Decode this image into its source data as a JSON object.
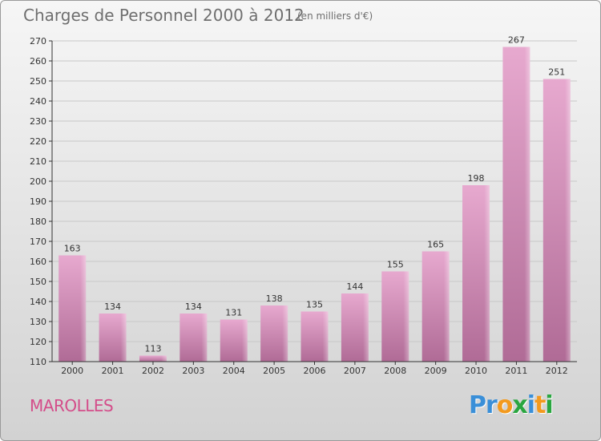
{
  "header": {
    "title": "Charges de Personnel 2000 à 2012",
    "unit": "(en milliers d'€)"
  },
  "footer": {
    "commune": "MAROLLES",
    "logo_letters": [
      {
        "char": "P",
        "color": "#3a8fd8"
      },
      {
        "char": "r",
        "color": "#3a8fd8"
      },
      {
        "char": "o",
        "color": "#f39a1e"
      },
      {
        "char": "x",
        "color": "#2aa640"
      },
      {
        "char": "i",
        "color": "#3a8fd8"
      },
      {
        "char": "t",
        "color": "#f39a1e"
      },
      {
        "char": "i",
        "color": "#2aa640"
      }
    ]
  },
  "colors": {
    "bar_top": "#e7a9cf",
    "bar_bottom": "#b06b96",
    "grid": "#c8c8c8",
    "axis": "#333333"
  },
  "chart_data": {
    "type": "bar",
    "title": "Charges de Personnel 2000 à 2012",
    "subtitle": "(en milliers d'€)",
    "categories": [
      "2000",
      "2001",
      "2002",
      "2003",
      "2004",
      "2005",
      "2006",
      "2007",
      "2008",
      "2009",
      "2010",
      "2011",
      "2012"
    ],
    "values": [
      163,
      134,
      113,
      134,
      131,
      138,
      135,
      144,
      155,
      165,
      198,
      267,
      251
    ],
    "data_labels": [
      "163",
      "134",
      "113",
      "134",
      "131",
      "138",
      "135",
      "144",
      "155",
      "165",
      "198",
      "267",
      "251"
    ],
    "ylim": [
      110,
      270
    ],
    "yticks": [
      110,
      120,
      130,
      140,
      150,
      160,
      170,
      180,
      190,
      200,
      210,
      220,
      230,
      240,
      250,
      260,
      270
    ],
    "grid": true,
    "xlabel": "",
    "ylabel": ""
  }
}
